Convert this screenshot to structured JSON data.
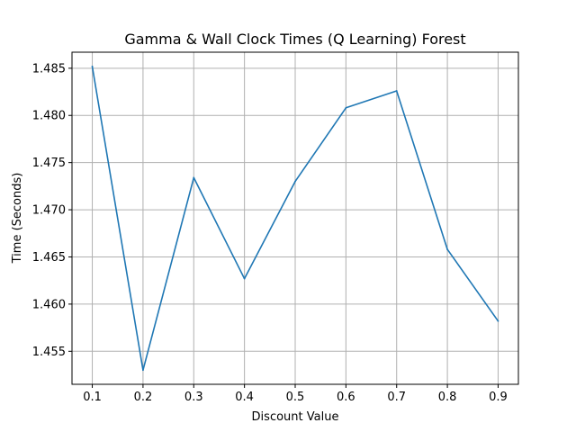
{
  "chart_data": {
    "type": "line",
    "title": "Gamma & Wall Clock Times (Q Learning) Forest",
    "xlabel": "Discount Value",
    "ylabel": "Time (Seconds)",
    "xlim": [
      0.06,
      0.94
    ],
    "ylim": [
      1.4515,
      1.4867
    ],
    "grid": true,
    "x_ticks": [
      0.1,
      0.2,
      0.3,
      0.4,
      0.5,
      0.6,
      0.7,
      0.8,
      0.9
    ],
    "x_tick_labels": [
      "0.1",
      "0.2",
      "0.3",
      "0.4",
      "0.5",
      "0.6",
      "0.7",
      "0.8",
      "0.9"
    ],
    "y_ticks": [
      1.455,
      1.46,
      1.465,
      1.47,
      1.475,
      1.48,
      1.485
    ],
    "y_tick_labels": [
      "1.455",
      "1.460",
      "1.465",
      "1.470",
      "1.475",
      "1.480",
      "1.485"
    ],
    "series": [
      {
        "color": "#1f77b4",
        "x": [
          0.1,
          0.2,
          0.3,
          0.4,
          0.5,
          0.6,
          0.7,
          0.8,
          0.9
        ],
        "y": [
          1.4852,
          1.453,
          1.4734,
          1.4627,
          1.473,
          1.4808,
          1.4826,
          1.4658,
          1.4582
        ]
      }
    ]
  }
}
